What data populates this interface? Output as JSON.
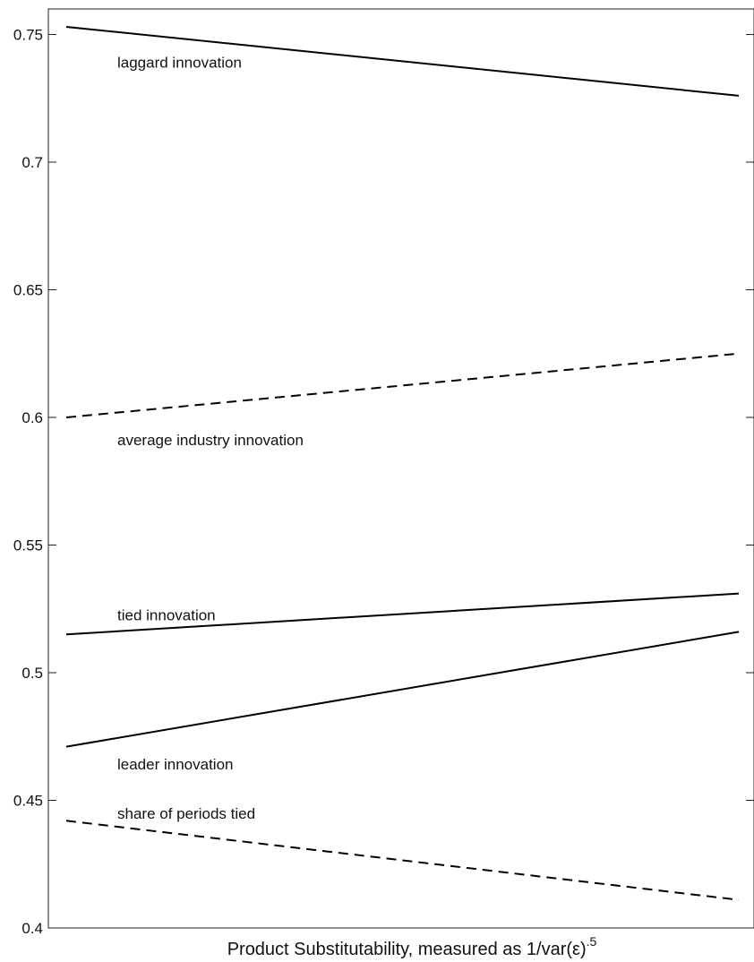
{
  "chart_data": {
    "type": "line",
    "title": "",
    "xlabel": "Product Substitutability, measured as 1/var(ε)",
    "xlabel_superscript": ".5",
    "ylabel": "",
    "ylim": [
      0.4,
      0.76
    ],
    "yticks": [
      "0.4",
      "0.45",
      "0.5",
      "0.55",
      "0.6",
      "0.65",
      "0.7",
      "0.75"
    ],
    "xtick_labels_shown": false,
    "grid": false,
    "x": [
      0,
      1
    ],
    "series": [
      {
        "name": "laggard innovation",
        "values": [
          0.753,
          0.726
        ],
        "style": "solid"
      },
      {
        "name": "average industry innovation",
        "values": [
          0.6,
          0.625
        ],
        "style": "dashed"
      },
      {
        "name": "tied innovation",
        "values": [
          0.515,
          0.531
        ],
        "style": "solid"
      },
      {
        "name": "leader innovation",
        "values": [
          0.471,
          0.516
        ],
        "style": "solid"
      },
      {
        "name": "share of periods tied",
        "values": [
          0.442,
          0.411
        ],
        "style": "dashed"
      }
    ],
    "line_color": "#000000"
  }
}
